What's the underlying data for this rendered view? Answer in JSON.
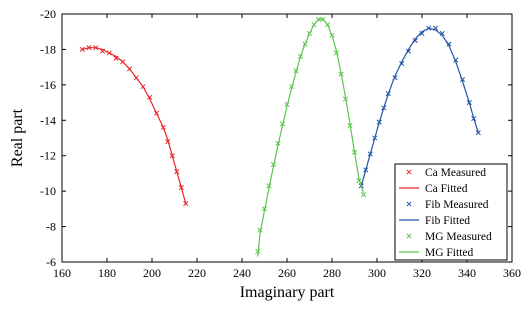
{
  "chart_data": {
    "type": "line",
    "title": "",
    "xlabel": "Imaginary part",
    "ylabel": "Real part",
    "xlim": [
      160,
      360
    ],
    "ylim": [
      -6,
      -20
    ],
    "y_axis_reversed": true,
    "grid": false,
    "legend_position": "bottom-right",
    "x_ticks": [
      "160",
      "180",
      "200",
      "220",
      "240",
      "260",
      "280",
      "300",
      "320",
      "340",
      "360"
    ],
    "y_ticks": [
      "-6",
      "-8",
      "-10",
      "-12",
      "-14",
      "-16",
      "-18",
      "-20"
    ],
    "x_tick_values": [
      160,
      180,
      200,
      220,
      240,
      260,
      280,
      300,
      320,
      340,
      360
    ],
    "y_tick_values": [
      -6,
      -8,
      -10,
      -12,
      -14,
      -16,
      -18,
      -20
    ],
    "series": [
      {
        "name": "Ca Measured",
        "kind": "scatter",
        "marker": "x",
        "color": "#e8262a",
        "x": [
          169,
          172,
          175,
          178,
          181,
          184,
          187,
          190,
          193,
          196,
          199,
          202,
          205,
          207,
          209,
          211,
          213,
          215
        ],
        "y": [
          -18.0,
          -18.1,
          -18.1,
          -17.9,
          -17.8,
          -17.5,
          -17.3,
          -16.9,
          -16.4,
          -15.9,
          -15.3,
          -14.4,
          -13.6,
          -12.8,
          -12.0,
          -11.1,
          -10.2,
          -9.3
        ]
      },
      {
        "name": "Ca Fitted",
        "kind": "line",
        "color": "#e8262a",
        "x": [
          169,
          172,
          175,
          178,
          181,
          184,
          187,
          190,
          193,
          196,
          199,
          202,
          205,
          207,
          209,
          211,
          213,
          215
        ],
        "y": [
          -18.0,
          -18.1,
          -18.1,
          -18.0,
          -17.8,
          -17.6,
          -17.3,
          -16.9,
          -16.4,
          -15.9,
          -15.2,
          -14.4,
          -13.6,
          -12.9,
          -12.0,
          -11.1,
          -10.2,
          -9.3
        ]
      },
      {
        "name": "Fib Measured",
        "kind": "scatter",
        "marker": "x",
        "color": "#2454a5",
        "x": [
          293,
          295,
          297,
          299,
          301,
          303,
          305,
          308,
          311,
          314,
          317,
          320,
          323,
          326,
          329,
          332,
          335,
          338,
          341,
          343,
          345
        ],
        "y": [
          -10.3,
          -11.2,
          -12.1,
          -13.0,
          -13.9,
          -14.7,
          -15.5,
          -16.4,
          -17.2,
          -17.9,
          -18.5,
          -18.9,
          -19.2,
          -19.2,
          -18.9,
          -18.3,
          -17.4,
          -16.3,
          -15.0,
          -14.1,
          -13.3
        ]
      },
      {
        "name": "Fib Fitted",
        "kind": "line",
        "color": "#2454a5",
        "x": [
          293,
          295,
          297,
          299,
          301,
          303,
          305,
          308,
          311,
          314,
          317,
          320,
          323,
          326,
          329,
          332,
          335,
          338,
          341,
          343,
          345
        ],
        "y": [
          -10.3,
          -11.2,
          -12.1,
          -13.0,
          -13.9,
          -14.7,
          -15.5,
          -16.5,
          -17.3,
          -18.0,
          -18.6,
          -19.0,
          -19.2,
          -19.1,
          -18.8,
          -18.2,
          -17.3,
          -16.2,
          -15.0,
          -14.1,
          -13.3
        ]
      },
      {
        "name": "MG Measured",
        "kind": "scatter",
        "marker": "x",
        "color": "#5cc64e",
        "x": [
          247,
          248,
          250,
          252,
          254,
          256,
          258,
          260,
          262,
          264,
          266,
          268,
          270,
          272,
          274,
          276,
          278,
          280,
          282,
          284,
          286,
          288,
          290,
          292,
          294
        ],
        "y": [
          -6.6,
          -7.8,
          -9.0,
          -10.3,
          -11.5,
          -12.7,
          -13.8,
          -14.9,
          -15.9,
          -16.8,
          -17.6,
          -18.3,
          -18.9,
          -19.4,
          -19.7,
          -19.7,
          -19.4,
          -18.8,
          -17.8,
          -16.6,
          -15.2,
          -13.7,
          -12.2,
          -10.6,
          -9.8
        ]
      },
      {
        "name": "MG Fitted",
        "kind": "line",
        "color": "#5cc64e",
        "x": [
          247,
          248,
          250,
          252,
          254,
          256,
          258,
          260,
          262,
          264,
          266,
          268,
          270,
          272,
          274,
          276,
          278,
          280,
          282,
          284,
          286,
          288,
          290,
          292,
          294
        ],
        "y": [
          -6.3,
          -7.6,
          -8.9,
          -10.2,
          -11.4,
          -12.6,
          -13.7,
          -14.8,
          -15.8,
          -16.7,
          -17.6,
          -18.3,
          -18.9,
          -19.4,
          -19.7,
          -19.7,
          -19.4,
          -18.8,
          -17.9,
          -16.7,
          -15.3,
          -13.8,
          -12.2,
          -10.7,
          -9.9
        ]
      }
    ]
  }
}
